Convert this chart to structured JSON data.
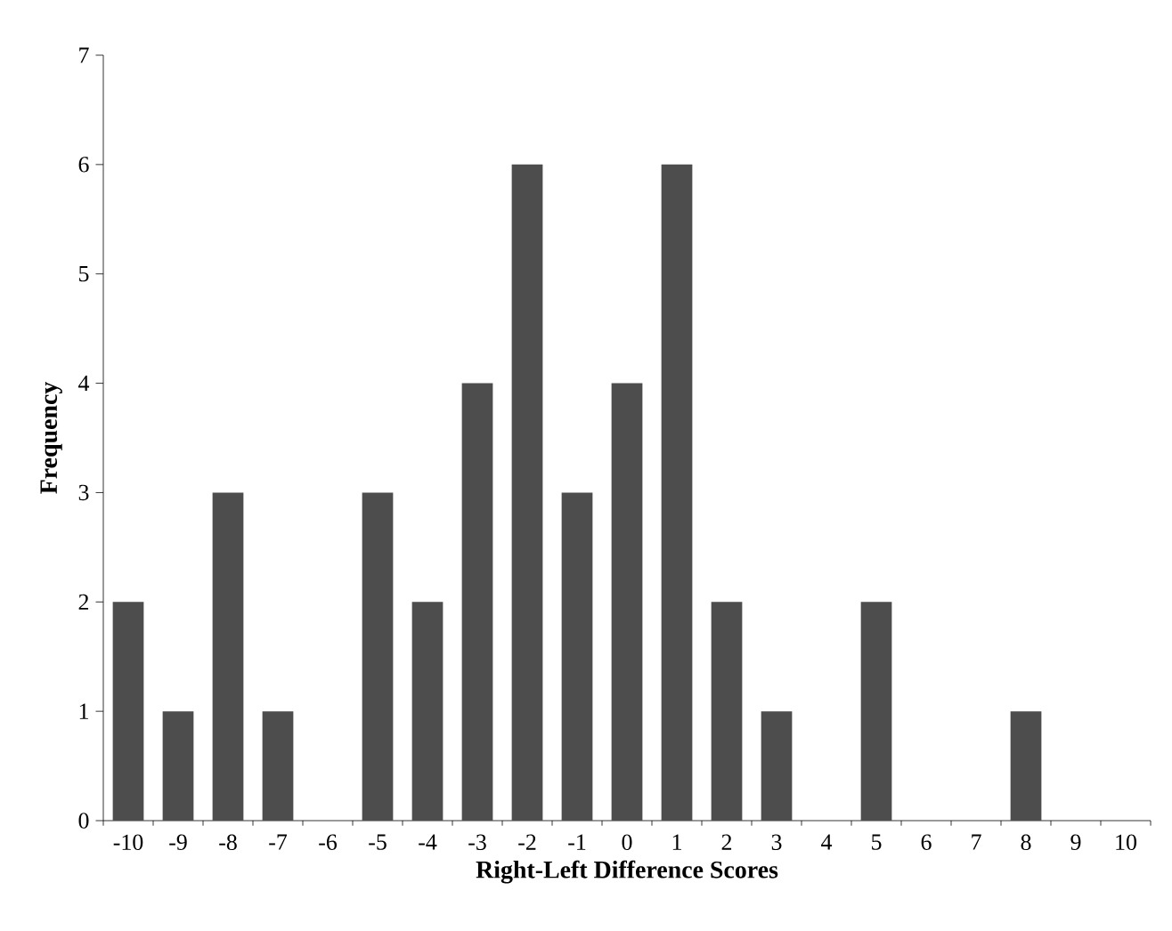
{
  "chart_data": {
    "type": "bar",
    "xlabel": "Right-Left Difference Scores",
    "ylabel": "Frequency",
    "categories": [
      "-10",
      "-9",
      "-8",
      "-7",
      "-6",
      "-5",
      "-4",
      "-3",
      "-2",
      "-1",
      "0",
      "1",
      "2",
      "3",
      "4",
      "5",
      "6",
      "7",
      "8",
      "9",
      "10"
    ],
    "values": [
      2,
      1,
      3,
      1,
      0,
      3,
      2,
      4,
      6,
      3,
      4,
      6,
      2,
      1,
      0,
      2,
      0,
      0,
      1,
      0,
      0
    ],
    "color": "#4d4d4d",
    "ylim": [
      0,
      7
    ],
    "yticks": [
      0,
      1,
      2,
      3,
      4,
      5,
      6,
      7
    ]
  }
}
